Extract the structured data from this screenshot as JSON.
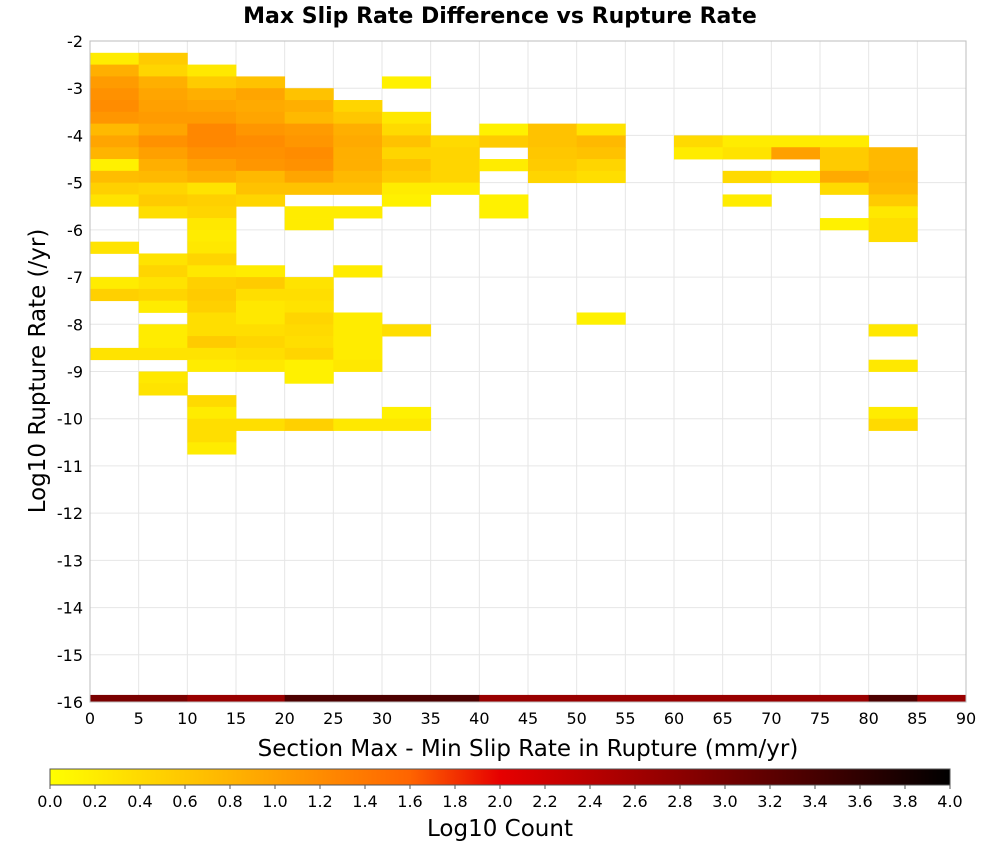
{
  "chart_data": {
    "type": "heatmap",
    "title": "Max Slip Rate Difference vs Rupture Rate",
    "xlabel": "Section Max - Min Slip Rate in Rupture (mm/yr)",
    "ylabel": "Log10 Rupture Rate (/yr)",
    "xlim": [
      0,
      90
    ],
    "ylim": [
      -16,
      -2
    ],
    "x_ticks": [
      "0",
      "5",
      "10",
      "15",
      "20",
      "25",
      "30",
      "35",
      "40",
      "45",
      "50",
      "55",
      "60",
      "65",
      "70",
      "75",
      "80",
      "85",
      "90"
    ],
    "y_ticks": [
      "-2",
      "-3",
      "-4",
      "-5",
      "-6",
      "-7",
      "-8",
      "-9",
      "-10",
      "-11",
      "-12",
      "-13",
      "-14",
      "-15",
      "-16"
    ],
    "x_bin_width": 5,
    "y_bin_height": 0.25,
    "grid": true,
    "colorbar": {
      "label": "Log10 Count",
      "min": 0.0,
      "max": 4.0,
      "ticks": [
        "0.0",
        "0.2",
        "0.4",
        "0.6",
        "0.8",
        "1.0",
        "1.2",
        "1.4",
        "1.6",
        "1.8",
        "2.0",
        "2.2",
        "2.4",
        "2.6",
        "2.8",
        "3.0",
        "3.2",
        "3.4",
        "3.6",
        "3.8",
        "4.0"
      ],
      "colors": [
        "#ffff00",
        "#ffb400",
        "#ff6400",
        "#e60000",
        "#8c0000",
        "#000000"
      ]
    },
    "cells": [
      [
        0,
        -2.25,
        0.2
      ],
      [
        5,
        -2.25,
        0.55
      ],
      [
        0,
        -2.5,
        0.85
      ],
      [
        5,
        -2.5,
        0.45
      ],
      [
        10,
        -2.5,
        0.25
      ],
      [
        0,
        -2.75,
        1.05
      ],
      [
        5,
        -2.75,
        0.85
      ],
      [
        10,
        -2.75,
        0.55
      ],
      [
        15,
        -2.75,
        0.65
      ],
      [
        30,
        -2.75,
        0.15
      ],
      [
        0,
        -3.0,
        1.15
      ],
      [
        5,
        -3.0,
        0.95
      ],
      [
        10,
        -3.0,
        0.85
      ],
      [
        15,
        -3.0,
        0.95
      ],
      [
        20,
        -3.0,
        0.65
      ],
      [
        0,
        -3.25,
        1.2
      ],
      [
        5,
        -3.25,
        1.0
      ],
      [
        10,
        -3.25,
        0.95
      ],
      [
        15,
        -3.25,
        0.9
      ],
      [
        20,
        -3.25,
        0.85
      ],
      [
        25,
        -3.25,
        0.45
      ],
      [
        0,
        -3.5,
        1.1
      ],
      [
        5,
        -3.5,
        1.05
      ],
      [
        10,
        -3.5,
        1.05
      ],
      [
        15,
        -3.5,
        0.95
      ],
      [
        20,
        -3.5,
        0.75
      ],
      [
        25,
        -3.5,
        0.6
      ],
      [
        30,
        -3.5,
        0.25
      ],
      [
        0,
        -3.75,
        0.75
      ],
      [
        5,
        -3.75,
        0.95
      ],
      [
        10,
        -3.75,
        1.25
      ],
      [
        15,
        -3.75,
        1.1
      ],
      [
        20,
        -3.75,
        1.05
      ],
      [
        25,
        -3.75,
        0.85
      ],
      [
        30,
        -3.75,
        0.4
      ],
      [
        40,
        -3.75,
        0.15
      ],
      [
        45,
        -3.75,
        0.65
      ],
      [
        50,
        -3.75,
        0.3
      ],
      [
        0,
        -4.0,
        0.95
      ],
      [
        5,
        -4.0,
        1.15
      ],
      [
        10,
        -4.0,
        1.25
      ],
      [
        15,
        -4.0,
        1.2
      ],
      [
        20,
        -4.0,
        1.1
      ],
      [
        25,
        -4.0,
        0.9
      ],
      [
        30,
        -4.0,
        0.65
      ],
      [
        35,
        -4.0,
        0.4
      ],
      [
        40,
        -4.0,
        0.55
      ],
      [
        45,
        -4.0,
        0.65
      ],
      [
        50,
        -4.0,
        0.75
      ],
      [
        60,
        -4.0,
        0.4
      ],
      [
        65,
        -4.0,
        0.2
      ],
      [
        70,
        -4.0,
        0.2
      ],
      [
        75,
        -4.0,
        0.2
      ],
      [
        0,
        -4.25,
        0.8
      ],
      [
        5,
        -4.25,
        1.0
      ],
      [
        10,
        -4.25,
        1.15
      ],
      [
        15,
        -4.25,
        1.15
      ],
      [
        20,
        -4.25,
        1.2
      ],
      [
        25,
        -4.25,
        0.85
      ],
      [
        30,
        -4.25,
        0.45
      ],
      [
        35,
        -4.25,
        0.45
      ],
      [
        45,
        -4.25,
        0.6
      ],
      [
        50,
        -4.25,
        0.65
      ],
      [
        60,
        -4.25,
        0.2
      ],
      [
        65,
        -4.25,
        0.3
      ],
      [
        70,
        -4.25,
        1.0
      ],
      [
        75,
        -4.25,
        0.55
      ],
      [
        80,
        -4.25,
        0.75
      ],
      [
        0,
        -4.5,
        0.15
      ],
      [
        5,
        -4.5,
        0.85
      ],
      [
        10,
        -4.5,
        1.0
      ],
      [
        15,
        -4.5,
        1.1
      ],
      [
        20,
        -4.5,
        1.15
      ],
      [
        25,
        -4.5,
        0.85
      ],
      [
        30,
        -4.5,
        0.65
      ],
      [
        35,
        -4.5,
        0.45
      ],
      [
        40,
        -4.5,
        0.2
      ],
      [
        45,
        -4.5,
        0.55
      ],
      [
        50,
        -4.5,
        0.45
      ],
      [
        75,
        -4.5,
        0.55
      ],
      [
        80,
        -4.5,
        0.75
      ],
      [
        0,
        -4.75,
        0.7
      ],
      [
        5,
        -4.75,
        0.75
      ],
      [
        10,
        -4.75,
        0.85
      ],
      [
        15,
        -4.75,
        0.75
      ],
      [
        20,
        -4.75,
        0.95
      ],
      [
        25,
        -4.75,
        0.75
      ],
      [
        30,
        -4.75,
        0.55
      ],
      [
        35,
        -4.75,
        0.45
      ],
      [
        45,
        -4.75,
        0.45
      ],
      [
        50,
        -4.75,
        0.35
      ],
      [
        65,
        -4.75,
        0.4
      ],
      [
        70,
        -4.75,
        0.2
      ],
      [
        75,
        -4.75,
        0.9
      ],
      [
        80,
        -4.75,
        0.8
      ],
      [
        0,
        -5.0,
        0.5
      ],
      [
        5,
        -5.0,
        0.45
      ],
      [
        10,
        -5.0,
        0.3
      ],
      [
        15,
        -5.0,
        0.65
      ],
      [
        20,
        -5.0,
        0.65
      ],
      [
        25,
        -5.0,
        0.65
      ],
      [
        30,
        -5.0,
        0.2
      ],
      [
        35,
        -5.0,
        0.2
      ],
      [
        75,
        -5.0,
        0.4
      ],
      [
        80,
        -5.0,
        0.75
      ],
      [
        0,
        -5.25,
        0.3
      ],
      [
        5,
        -5.25,
        0.55
      ],
      [
        10,
        -5.25,
        0.5
      ],
      [
        15,
        -5.25,
        0.45
      ],
      [
        30,
        -5.25,
        0.15
      ],
      [
        40,
        -5.25,
        0.15
      ],
      [
        65,
        -5.25,
        0.2
      ],
      [
        80,
        -5.25,
        0.55
      ],
      [
        5,
        -5.5,
        0.35
      ],
      [
        10,
        -5.5,
        0.45
      ],
      [
        20,
        -5.5,
        0.2
      ],
      [
        25,
        -5.5,
        0.2
      ],
      [
        40,
        -5.5,
        0.15
      ],
      [
        80,
        -5.5,
        0.25
      ],
      [
        10,
        -5.75,
        0.25
      ],
      [
        20,
        -5.75,
        0.2
      ],
      [
        75,
        -5.75,
        0.15
      ],
      [
        80,
        -5.75,
        0.35
      ],
      [
        10,
        -6.0,
        0.2
      ],
      [
        80,
        -6.0,
        0.35
      ],
      [
        0,
        -6.25,
        0.3
      ],
      [
        10,
        -6.25,
        0.25
      ],
      [
        5,
        -6.5,
        0.3
      ],
      [
        10,
        -6.5,
        0.45
      ],
      [
        5,
        -6.75,
        0.45
      ],
      [
        10,
        -6.75,
        0.25
      ],
      [
        15,
        -6.75,
        0.2
      ],
      [
        25,
        -6.75,
        0.2
      ],
      [
        0,
        -7.0,
        0.2
      ],
      [
        5,
        -7.0,
        0.3
      ],
      [
        10,
        -7.0,
        0.5
      ],
      [
        15,
        -7.0,
        0.55
      ],
      [
        20,
        -7.0,
        0.3
      ],
      [
        0,
        -7.25,
        0.5
      ],
      [
        5,
        -7.25,
        0.45
      ],
      [
        10,
        -7.25,
        0.55
      ],
      [
        15,
        -7.25,
        0.35
      ],
      [
        20,
        -7.25,
        0.35
      ],
      [
        5,
        -7.5,
        0.2
      ],
      [
        10,
        -7.5,
        0.5
      ],
      [
        15,
        -7.5,
        0.25
      ],
      [
        20,
        -7.5,
        0.3
      ],
      [
        10,
        -7.75,
        0.35
      ],
      [
        15,
        -7.75,
        0.25
      ],
      [
        20,
        -7.75,
        0.45
      ],
      [
        25,
        -7.75,
        0.2
      ],
      [
        50,
        -7.75,
        0.15
      ],
      [
        5,
        -8.0,
        0.2
      ],
      [
        10,
        -8.0,
        0.35
      ],
      [
        15,
        -8.0,
        0.35
      ],
      [
        20,
        -8.0,
        0.4
      ],
      [
        25,
        -8.0,
        0.2
      ],
      [
        30,
        -8.0,
        0.35
      ],
      [
        80,
        -8.0,
        0.25
      ],
      [
        5,
        -8.25,
        0.2
      ],
      [
        10,
        -8.25,
        0.55
      ],
      [
        15,
        -8.25,
        0.45
      ],
      [
        20,
        -8.25,
        0.35
      ],
      [
        25,
        -8.25,
        0.2
      ],
      [
        0,
        -8.5,
        0.3
      ],
      [
        5,
        -8.5,
        0.3
      ],
      [
        10,
        -8.5,
        0.3
      ],
      [
        15,
        -8.5,
        0.35
      ],
      [
        20,
        -8.5,
        0.45
      ],
      [
        25,
        -8.5,
        0.2
      ],
      [
        10,
        -8.75,
        0.2
      ],
      [
        15,
        -8.75,
        0.25
      ],
      [
        20,
        -8.75,
        0.15
      ],
      [
        25,
        -8.75,
        0.25
      ],
      [
        80,
        -8.75,
        0.25
      ],
      [
        5,
        -9.0,
        0.25
      ],
      [
        20,
        -9.0,
        0.15
      ],
      [
        5,
        -9.25,
        0.3
      ],
      [
        10,
        -9.5,
        0.4
      ],
      [
        10,
        -9.75,
        0.2
      ],
      [
        30,
        -9.75,
        0.15
      ],
      [
        80,
        -9.75,
        0.2
      ],
      [
        10,
        -10.0,
        0.35
      ],
      [
        15,
        -10.0,
        0.35
      ],
      [
        20,
        -10.0,
        0.5
      ],
      [
        25,
        -10.0,
        0.25
      ],
      [
        30,
        -10.0,
        0.25
      ],
      [
        80,
        -10.0,
        0.4
      ],
      [
        10,
        -10.25,
        0.35
      ],
      [
        10,
        -10.5,
        0.2
      ]
    ],
    "partial_cells": [
      [
        20,
        -5.5,
        0.2,
        -6.0
      ]
    ]
  }
}
